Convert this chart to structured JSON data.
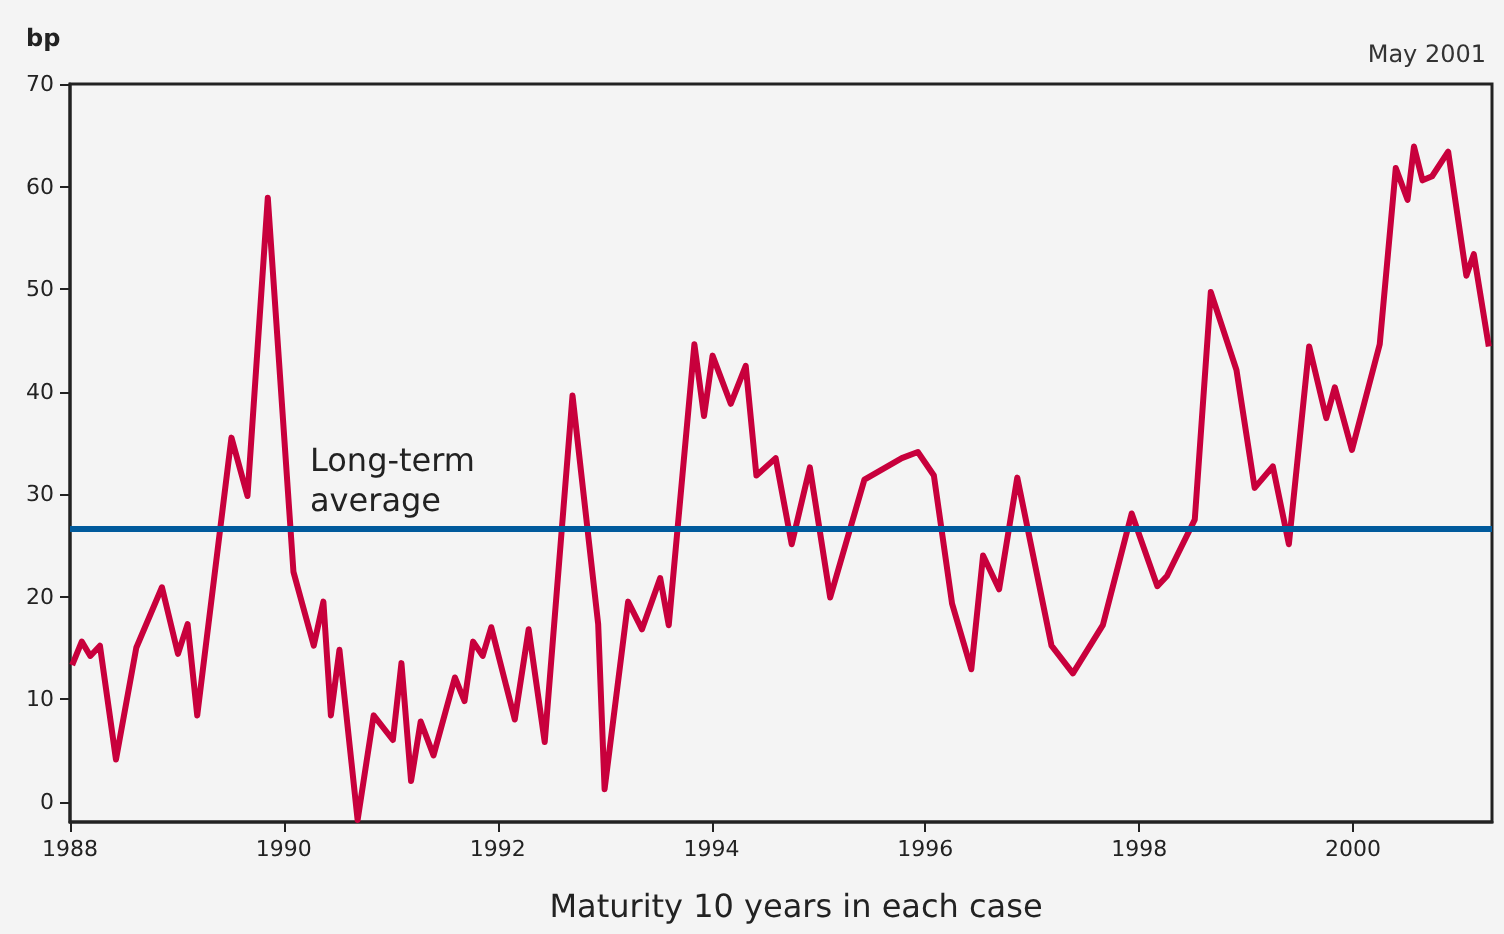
{
  "chart_data": {
    "type": "line",
    "subtitle": "May 2001",
    "ylabel": "bp",
    "xlabel": "Maturity 10 years in each case",
    "series": [
      {
        "color": "#c8003c",
        "x": [
          1988.02,
          1988.11,
          1988.19,
          1988.28,
          1988.43,
          1988.62,
          1988.86,
          1989.01,
          1989.1,
          1989.19,
          1989.51,
          1989.66,
          1989.85,
          1990.09,
          1990.28,
          1990.37,
          1990.44,
          1990.52,
          1990.69,
          1990.84,
          1991.02,
          1991.1,
          1991.19,
          1991.28,
          1991.4,
          1991.6,
          1991.69,
          1991.77,
          1991.86,
          1991.94,
          1992.16,
          1992.29,
          1992.44,
          1992.7,
          1992.94,
          1993.0,
          1993.22,
          1993.35,
          1993.52,
          1993.6,
          1993.84,
          1993.93,
          1994.01,
          1994.18,
          1994.32,
          1994.42,
          1994.6,
          1994.75,
          1994.92,
          1995.11,
          1995.43,
          1995.78,
          1995.93,
          1996.08,
          1996.25,
          1996.43,
          1996.54,
          1996.69,
          1996.86,
          1997.18,
          1997.38,
          1997.66,
          1997.93,
          1998.17,
          1998.26,
          1998.52,
          1998.67,
          1998.91,
          1999.08,
          1999.25,
          1999.4,
          1999.59,
          1999.75,
          1999.83,
          1999.99,
          2000.25,
          2000.4,
          2000.51,
          2000.57,
          2000.65,
          2000.74,
          2000.89,
          2001.06,
          2001.13,
          2001.27
        ],
        "values": [
          13.3,
          15.6,
          14.2,
          15.2,
          4.1,
          15,
          20.9,
          14.4,
          17.3,
          8.4,
          35.5,
          29.8,
          58.9,
          22.4,
          15.2,
          19.5,
          8.4,
          14.8,
          -1.8,
          8.4,
          6,
          13.5,
          2,
          7.8,
          4.5,
          12.1,
          9.8,
          15.6,
          14.2,
          17,
          8,
          16.8,
          5.8,
          39.6,
          17.3,
          1.2,
          19.5,
          16.8,
          21.8,
          17.2,
          44.6,
          37.6,
          43.5,
          38.8,
          42.5,
          31.8,
          33.5,
          25.1,
          32.6,
          19.9,
          31.4,
          33.5,
          34.1,
          31.8,
          19.3,
          12.9,
          24,
          20.7,
          31.6,
          15.2,
          12.5,
          17.2,
          28.1,
          21,
          22,
          27.5,
          49.7,
          42.1,
          30.6,
          32.7,
          25.1,
          44.4,
          37.4,
          40.4,
          34.3,
          44.6,
          61.8,
          58.7,
          63.9,
          60.6,
          61,
          63.4,
          51.3,
          53.4,
          44.4
        ]
      }
    ],
    "xlim": [
      1988,
      2001.3
    ],
    "xticks": [
      1988,
      1990,
      1992,
      1994,
      1996,
      1998,
      2000
    ],
    "ylim": [
      -2,
      70
    ],
    "yticks": [
      0,
      10,
      20,
      30,
      40,
      50,
      60,
      70
    ],
    "ref_lines": [
      {
        "axis": "y",
        "value": 26.7,
        "label": "Long-term average",
        "color": "#005a9c"
      }
    ],
    "marker": "none",
    "line_style": "solid"
  }
}
